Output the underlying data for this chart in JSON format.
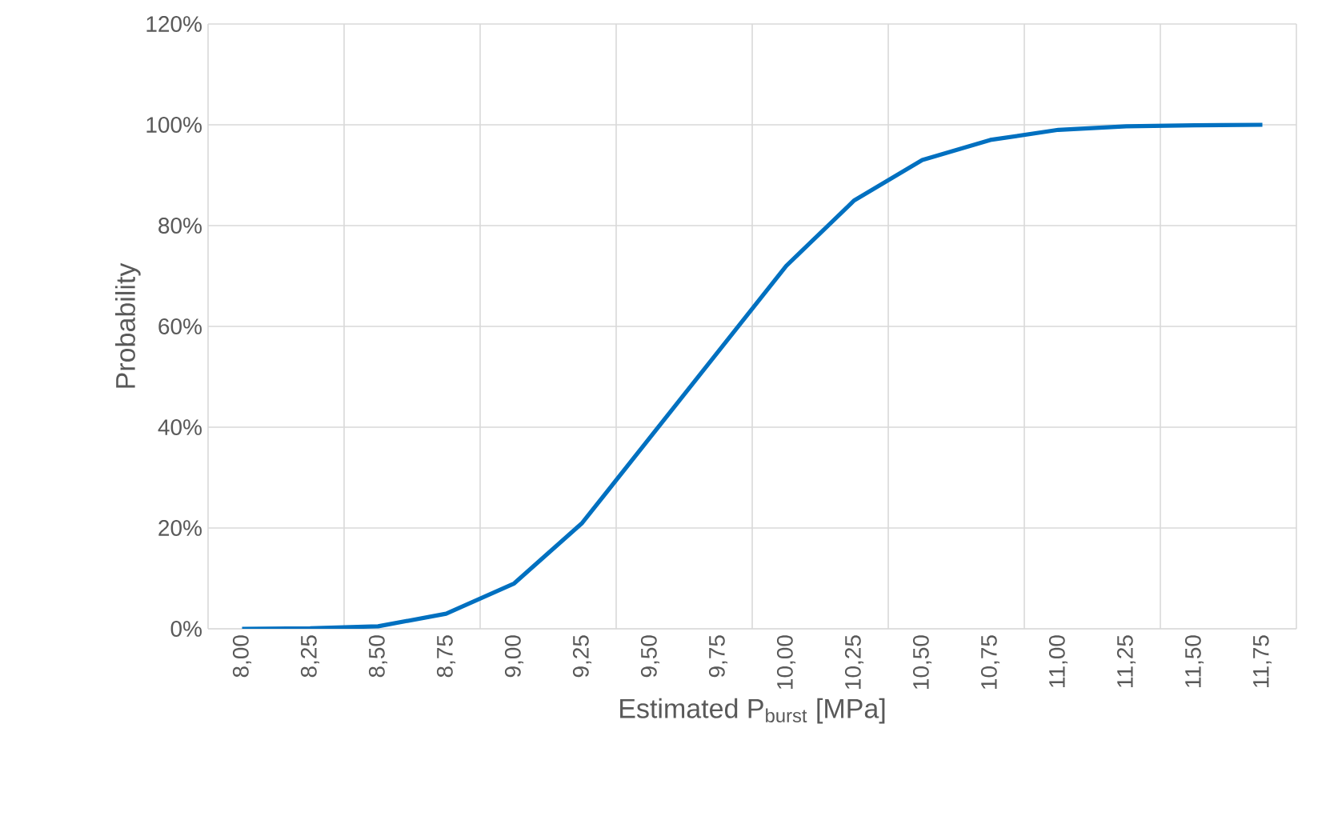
{
  "chart_data": {
    "type": "line",
    "xlabel": "Estimated P$_{burst}$ [MPa]",
    "ylabel": "Probability",
    "categories": [
      "8,00",
      "8,25",
      "8,50",
      "8,75",
      "9,00",
      "9,25",
      "9,50",
      "9,75",
      "10,00",
      "10,25",
      "10,50",
      "10,75",
      "11,00",
      "11,25",
      "11,50",
      "11,75"
    ],
    "series": [
      {
        "color": "#0070c0",
        "values": [
          0,
          0.1,
          0.5,
          3,
          9,
          21,
          38,
          55,
          72,
          85,
          93,
          97,
          99,
          99.7,
          99.9,
          100
        ]
      }
    ],
    "ylim": [
      0,
      120
    ],
    "yticks": [
      {
        "value": 0,
        "label": "0%"
      },
      {
        "value": 20,
        "label": "20%"
      },
      {
        "value": 40,
        "label": "40%"
      },
      {
        "value": 60,
        "label": "60%"
      },
      {
        "value": 80,
        "label": "80%"
      },
      {
        "value": 100,
        "label": "100%"
      },
      {
        "value": 120,
        "label": "120%"
      }
    ],
    "grid": true
  }
}
